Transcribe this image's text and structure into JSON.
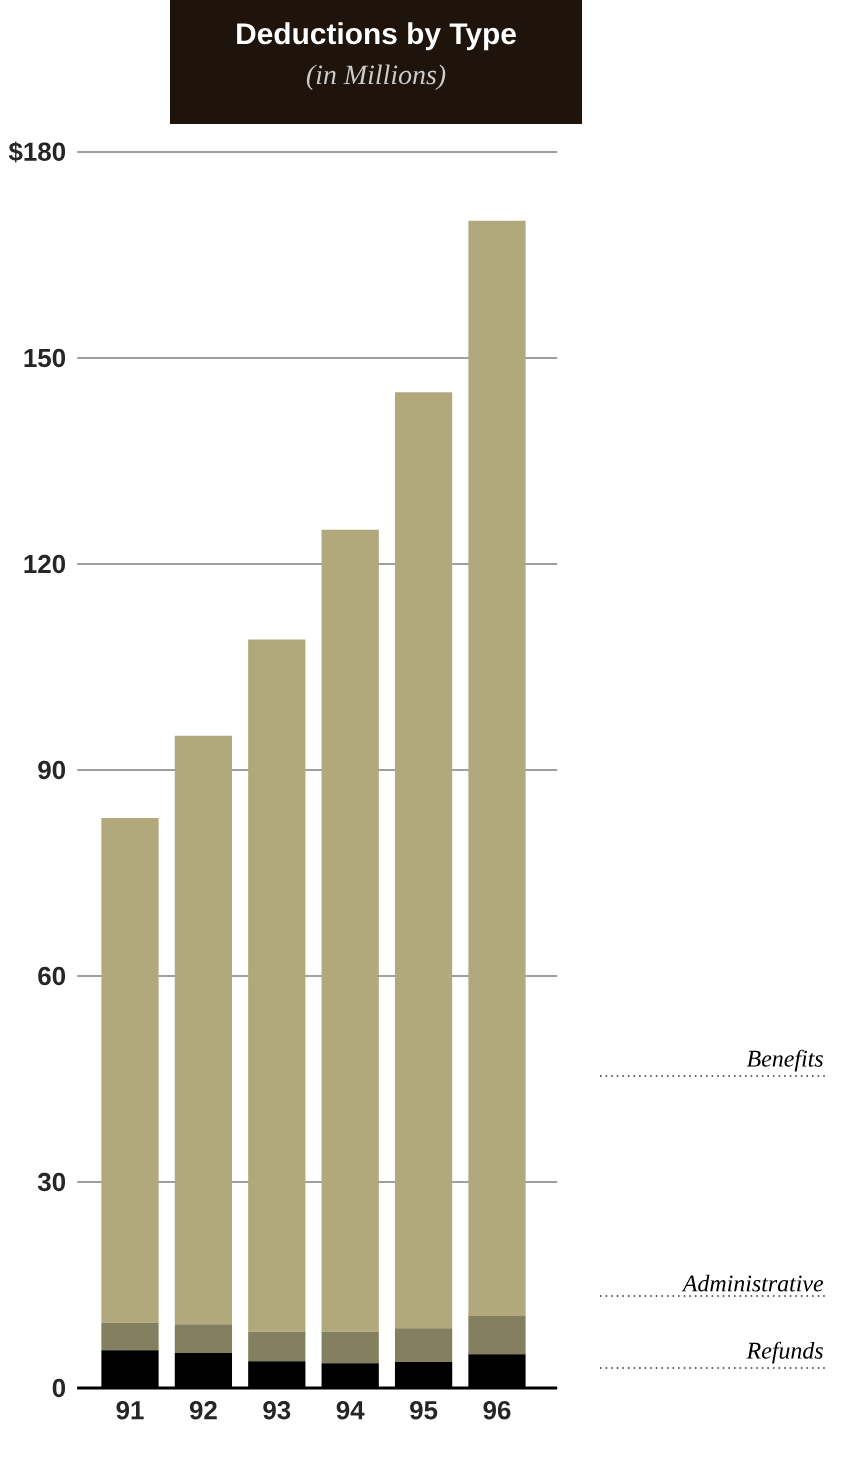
{
  "chart_data": {
    "type": "bar",
    "title": "Deductions by Type",
    "subtitle": "(in Millions)",
    "categories": [
      "91",
      "92",
      "93",
      "94",
      "95",
      "96"
    ],
    "stacked": true,
    "series": [
      {
        "name": "Refunds",
        "color": "#000000",
        "values": [
          5.5,
          5.1,
          3.9,
          3.6,
          3.8,
          4.9
        ]
      },
      {
        "name": "Administrative",
        "color": "#847f5f",
        "values": [
          4.0,
          4.2,
          4.3,
          4.6,
          4.9,
          5.6
        ]
      },
      {
        "name": "Benefits",
        "color": "#b1a97b",
        "values": [
          73.5,
          85.7,
          100.8,
          116.8,
          136.3,
          159.5
        ]
      }
    ],
    "ylim": [
      0,
      180
    ],
    "yticks": [
      0,
      30,
      60,
      90,
      120,
      150,
      {
        "value": 180,
        "label": "$180"
      }
    ],
    "grid": "y",
    "legend": "right"
  }
}
